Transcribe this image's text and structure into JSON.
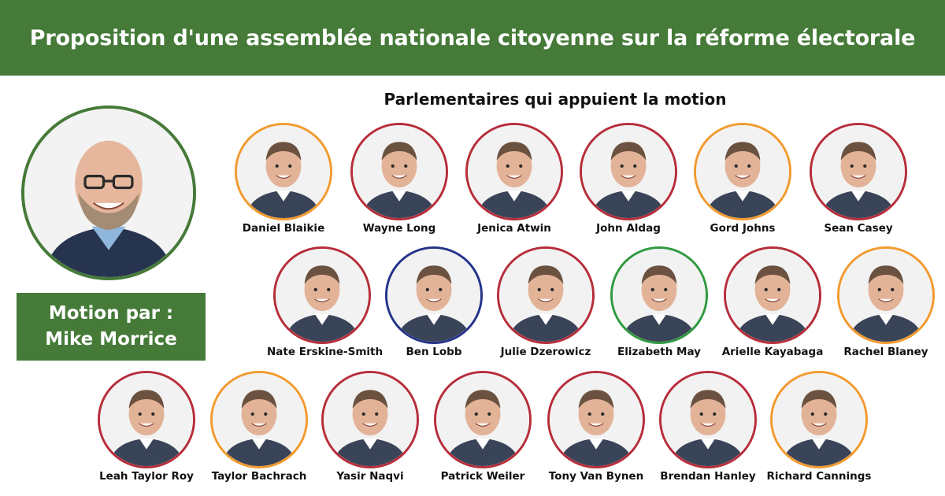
{
  "banner": {
    "title": "Proposition d'une assemblée nationale citoyenne sur la réforme électorale"
  },
  "subtitle": "Parlementaires qui appuient la motion",
  "motion": {
    "line1": "Motion par :",
    "line2": "Mike Morrice"
  },
  "colors": {
    "brand_green": "#457a38",
    "ring_red": "#b72d3a",
    "ring_orange": "#f29a2e",
    "ring_blue": "#24338a",
    "ring_green": "#2f9a3f"
  },
  "mps": [
    {
      "name": "Daniel Blaikie",
      "ring": "orange"
    },
    {
      "name": "Wayne Long",
      "ring": "red"
    },
    {
      "name": "Jenica Atwin",
      "ring": "red"
    },
    {
      "name": "John Aldag",
      "ring": "red"
    },
    {
      "name": "Gord Johns",
      "ring": "orange"
    },
    {
      "name": "Sean Casey",
      "ring": "red"
    },
    {
      "name": "Nate Erskine-Smith",
      "ring": "red"
    },
    {
      "name": "Ben Lobb",
      "ring": "blue"
    },
    {
      "name": "Julie Dzerowicz",
      "ring": "red"
    },
    {
      "name": "Elizabeth May",
      "ring": "green"
    },
    {
      "name": "Arielle Kayabaga",
      "ring": "red"
    },
    {
      "name": "Rachel Blaney",
      "ring": "orange"
    },
    {
      "name": "Leah Taylor Roy",
      "ring": "red"
    },
    {
      "name": "Taylor Bachrach",
      "ring": "orange"
    },
    {
      "name": "Yasir Naqvi",
      "ring": "red"
    },
    {
      "name": "Patrick Weiler",
      "ring": "red"
    },
    {
      "name": "Tony Van Bynen",
      "ring": "red"
    },
    {
      "name": "Brendan Hanley",
      "ring": "red"
    },
    {
      "name": "Richard Cannings",
      "ring": "orange"
    }
  ]
}
